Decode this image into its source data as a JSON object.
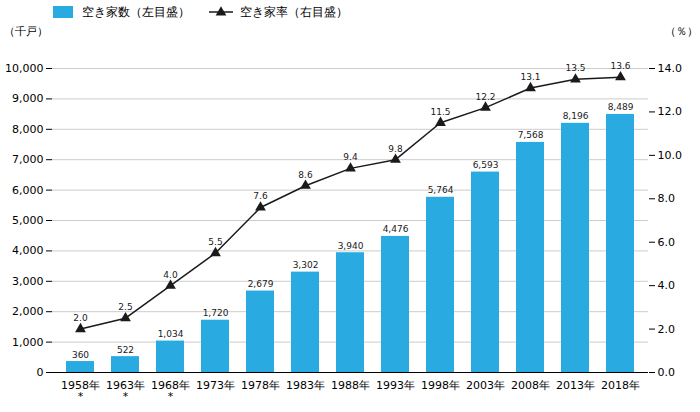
{
  "chart_data": {
    "type": "bar",
    "categories": [
      "1958年\n*",
      "1963年\n*",
      "1968年\n*",
      "1973年",
      "1978年",
      "1983年",
      "1988年",
      "1993年",
      "1998年",
      "2003年",
      "2008年",
      "2013年",
      "2018年"
    ],
    "series": [
      {
        "name": "空き家数（左目盛）",
        "type": "bar",
        "color": "#29ABE2",
        "values": [
          360,
          522,
          1034,
          1720,
          2679,
          3302,
          3940,
          4476,
          5764,
          6593,
          7568,
          8196,
          8489
        ],
        "value_labels": [
          "360",
          "522",
          "1,034",
          "1,720",
          "2,679",
          "3,302",
          "3,940",
          "4,476",
          "5,764",
          "6,593",
          "7,568",
          "8,196",
          "8,489"
        ]
      },
      {
        "name": "空き家率（右目盛）",
        "type": "line",
        "axis": "y2",
        "color": "#1a1a1a",
        "marker": "triangle",
        "values": [
          2.0,
          2.5,
          4.0,
          5.5,
          7.6,
          8.6,
          9.4,
          9.8,
          11.5,
          12.2,
          13.1,
          13.5,
          13.6
        ],
        "value_labels": [
          "2.0",
          "2.5",
          "4.0",
          "5.5",
          "7.6",
          "8.6",
          "9.4",
          "9.8",
          "11.5",
          "12.2",
          "13.1",
          "13.5",
          "13.6"
        ]
      }
    ],
    "y_label": "（千戸）",
    "y2_label": "（％）",
    "ylim": [
      0,
      10000
    ],
    "yticks": [
      0,
      {
        "value": 1000,
        "label": "1,000"
      },
      {
        "value": 2000,
        "label": "2,000"
      },
      {
        "value": 3000,
        "label": "3,000"
      },
      {
        "value": 4000,
        "label": "4,000"
      },
      {
        "value": 5000,
        "label": "5,000"
      },
      {
        "value": 6000,
        "label": "6,000"
      },
      {
        "value": 7000,
        "label": "7,000"
      },
      {
        "value": 8000,
        "label": "8,000"
      },
      {
        "value": 9000,
        "label": "9,000"
      },
      {
        "value": 10000,
        "label": "10,000"
      }
    ],
    "y2lim": [
      0.0,
      14.0
    ],
    "y2ticks": [
      {
        "value": 0,
        "label": "0.0"
      },
      {
        "value": 2,
        "label": "2.0"
      },
      {
        "value": 4,
        "label": "4.0"
      },
      {
        "value": 6,
        "label": "6.0"
      },
      {
        "value": 8,
        "label": "8.0"
      },
      {
        "value": 10,
        "label": "10.0"
      },
      {
        "value": 12,
        "label": "12.0"
      },
      {
        "value": 14,
        "label": "14.0"
      }
    ],
    "grid": true,
    "legend": "upper left",
    "data_labels": true
  }
}
